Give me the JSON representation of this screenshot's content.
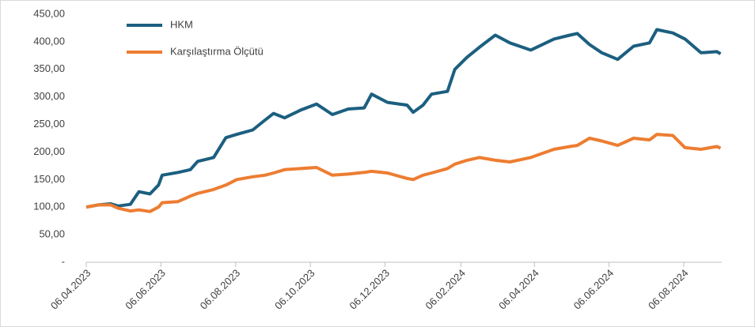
{
  "chart_data": {
    "type": "line",
    "x": [
      "2023-04-06",
      "2023-04-16",
      "2023-04-26",
      "2023-05-02",
      "2023-05-12",
      "2023-05-19",
      "2023-05-28",
      "2023-06-04",
      "2023-06-07",
      "2023-06-20",
      "2023-06-30",
      "2023-07-06",
      "2023-07-19",
      "2023-07-29",
      "2023-08-07",
      "2023-08-20",
      "2023-08-30",
      "2023-09-06",
      "2023-09-15",
      "2023-09-28",
      "2023-10-11",
      "2023-10-24",
      "2023-11-06",
      "2023-11-19",
      "2023-11-25",
      "2023-12-08",
      "2023-12-24",
      "2023-12-29",
      "2024-01-06",
      "2024-01-13",
      "2024-01-26",
      "2024-02-01",
      "2024-02-11",
      "2024-02-21",
      "2024-03-05",
      "2024-03-17",
      "2024-04-03",
      "2024-04-22",
      "2024-05-05",
      "2024-05-11",
      "2024-05-21",
      "2024-05-31",
      "2024-06-13",
      "2024-06-26",
      "2024-07-09",
      "2024-07-15",
      "2024-07-28",
      "2024-08-07",
      "2024-08-20",
      "2024-09-02",
      "2024-09-05"
    ],
    "series": [
      {
        "name": "HKM",
        "color": "#1c5f80",
        "values": [
          100,
          104,
          106,
          102,
          105,
          128,
          124,
          140,
          158,
          163,
          168,
          183,
          190,
          226,
          232,
          240,
          258,
          270,
          262,
          276,
          287,
          268,
          278,
          280,
          305,
          290,
          285,
          272,
          285,
          305,
          310,
          350,
          372,
          390,
          412,
          398,
          385,
          405,
          412,
          415,
          395,
          380,
          368,
          392,
          398,
          422,
          416,
          405,
          380,
          382,
          378
        ]
      },
      {
        "name": "Karşılaştırma Ölçütü",
        "color": "#ed7d31",
        "values": [
          100,
          104,
          104,
          98,
          93,
          95,
          92,
          100,
          108,
          110,
          120,
          125,
          132,
          140,
          150,
          155,
          158,
          162,
          168,
          170,
          172,
          158,
          160,
          163,
          165,
          162,
          152,
          150,
          158,
          162,
          170,
          178,
          185,
          190,
          185,
          182,
          190,
          205,
          210,
          212,
          225,
          220,
          212,
          225,
          222,
          232,
          230,
          208,
          205,
          210,
          207
        ]
      }
    ],
    "xlim": [
      "2023-04-06",
      "2024-09-06"
    ],
    "xticks": [
      {
        "value": "2023-04-06",
        "label": "06.04.2023"
      },
      {
        "value": "2023-06-06",
        "label": "06.06.2023"
      },
      {
        "value": "2023-08-06",
        "label": "06.08.2023"
      },
      {
        "value": "2023-10-06",
        "label": "06.10.2023"
      },
      {
        "value": "2023-12-06",
        "label": "06.12.2023"
      },
      {
        "value": "2024-02-06",
        "label": "06.02.2024"
      },
      {
        "value": "2024-04-06",
        "label": "06.04.2024"
      },
      {
        "value": "2024-06-06",
        "label": "06.06.2024"
      },
      {
        "value": "2024-08-06",
        "label": "06.08.2024"
      }
    ],
    "ylim": [
      0,
      450
    ],
    "yticks": [
      {
        "value": 0,
        "label": "-"
      },
      {
        "value": 50,
        "label": "50,00"
      },
      {
        "value": 100,
        "label": "100,00"
      },
      {
        "value": 150,
        "label": "150,00"
      },
      {
        "value": 200,
        "label": "200,00"
      },
      {
        "value": 250,
        "label": "250,00"
      },
      {
        "value": 300,
        "label": "300,00"
      },
      {
        "value": 350,
        "label": "350,00"
      },
      {
        "value": 400,
        "label": "400,00"
      },
      {
        "value": 450,
        "label": "450,00"
      }
    ],
    "legend": "top-left"
  }
}
